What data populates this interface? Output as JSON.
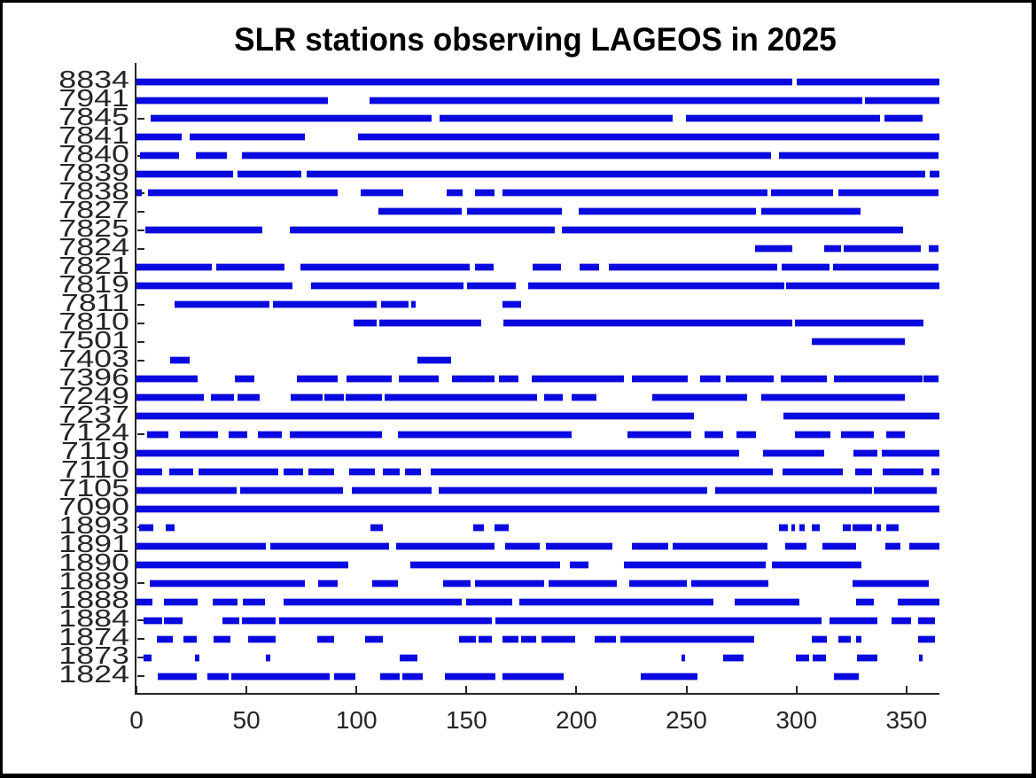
{
  "title": "SLR stations observing LAGEOS in 2025",
  "colors": {
    "bar": "#0a0ae0",
    "axis": "#262626",
    "tick_label": "#262626",
    "title": "#000000",
    "frame": "#000000",
    "background": "#ffffff"
  },
  "chart_data": {
    "type": "bar",
    "orientation": "horizontal-segments",
    "title": "SLR stations observing LAGEOS in 2025",
    "xlabel": "",
    "ylabel": "",
    "xlim": [
      0,
      365
    ],
    "xticks": [
      0,
      50,
      100,
      150,
      200,
      250,
      300,
      350
    ],
    "grid": false,
    "legend": false,
    "stations": [
      {
        "id": "8834",
        "segments": [
          [
            0,
            298
          ],
          [
            300,
            365
          ]
        ]
      },
      {
        "id": "7941",
        "segments": [
          [
            0,
            87
          ],
          [
            106,
            330
          ],
          [
            331,
            365
          ]
        ]
      },
      {
        "id": "7845",
        "segments": [
          [
            6.4,
            134
          ],
          [
            137.7,
            243.8
          ],
          [
            249.6,
            338
          ],
          [
            340,
            357.5
          ]
        ]
      },
      {
        "id": "7841",
        "segments": [
          [
            0,
            20.4
          ],
          [
            24,
            76.4
          ],
          [
            100.8,
            365
          ]
        ]
      },
      {
        "id": "7840",
        "segments": [
          [
            1.6,
            19.4
          ],
          [
            26.8,
            41.1
          ],
          [
            47.9,
            288.4
          ],
          [
            292,
            364.5
          ]
        ]
      },
      {
        "id": "7839",
        "segments": [
          [
            0,
            43.8
          ],
          [
            45.8,
            75.1
          ],
          [
            77.4,
            358.5
          ],
          [
            360.5,
            365
          ]
        ]
      },
      {
        "id": "7838",
        "segments": [
          [
            0,
            2.5
          ],
          [
            5.2,
            91.4
          ],
          [
            101.8,
            121.2
          ],
          [
            141,
            148.4
          ],
          [
            153.7,
            162.7
          ],
          [
            166.5,
            286.8
          ],
          [
            288.4,
            316.6
          ],
          [
            319,
            364.8
          ]
        ]
      },
      {
        "id": "7827",
        "segments": [
          [
            109.9,
            147.7
          ],
          [
            150.1,
            193.3
          ],
          [
            201,
            281.7
          ],
          [
            284.1,
            329.3
          ]
        ]
      },
      {
        "id": "7825",
        "segments": [
          [
            4,
            57.2
          ],
          [
            69.7,
            190.3
          ],
          [
            193.3,
            348.7
          ]
        ]
      },
      {
        "id": "7824",
        "segments": [
          [
            281,
            298.2
          ],
          [
            312.8,
            320.2
          ],
          [
            321.5,
            356.4
          ],
          [
            360.2,
            364.6
          ]
        ]
      },
      {
        "id": "7821",
        "segments": [
          [
            0,
            34.2
          ],
          [
            36.2,
            67.3
          ],
          [
            74.7,
            151.7
          ],
          [
            153.7,
            162.2
          ],
          [
            179.9,
            192.9
          ],
          [
            201.3,
            210.4
          ],
          [
            214.7,
            291.4
          ],
          [
            293.1,
            315.2
          ],
          [
            316.5,
            364.6
          ]
        ]
      },
      {
        "id": "7819",
        "segments": [
          [
            0,
            71
          ],
          [
            79.3,
            148.8
          ],
          [
            150.4,
            172.5
          ],
          [
            177.9,
            294.5
          ],
          [
            295.1,
            365
          ]
        ]
      },
      {
        "id": "7811",
        "segments": [
          [
            17.4,
            60.3
          ],
          [
            61.9,
            109.1
          ],
          [
            111.2,
            123.8
          ],
          [
            124.8,
            127
          ],
          [
            166.2,
            174.8
          ]
        ]
      },
      {
        "id": "7810",
        "segments": [
          [
            98.8,
            109.1
          ],
          [
            110.2,
            156.8
          ],
          [
            166.9,
            298.1
          ],
          [
            299.2,
            357.9
          ]
        ]
      },
      {
        "id": "7501",
        "segments": [
          [
            307,
            349.2
          ]
        ]
      },
      {
        "id": "7403",
        "segments": [
          [
            15.4,
            24.4
          ],
          [
            127.6,
            143
          ]
        ]
      },
      {
        "id": "7396",
        "segments": [
          [
            0,
            27.7
          ],
          [
            44.8,
            53.6
          ],
          [
            72.9,
            91.4
          ],
          [
            95.4,
            116.2
          ],
          [
            119.3,
            137.4
          ],
          [
            143.4,
            162.7
          ],
          [
            164.7,
            173.8
          ],
          [
            179.6,
            221.4
          ],
          [
            225.2,
            250.6
          ],
          [
            256.3,
            265.4
          ],
          [
            267.9,
            289.5
          ],
          [
            292.9,
            313.9
          ],
          [
            316.9,
            357.5
          ],
          [
            357.9,
            364.6
          ]
        ]
      },
      {
        "id": "7249",
        "segments": [
          [
            0,
            30.5
          ],
          [
            34,
            44.5
          ],
          [
            45.8,
            56.2
          ],
          [
            70,
            84.7
          ],
          [
            85.4,
            94.4
          ],
          [
            95.2,
            111.8
          ],
          [
            112.6,
            181.9
          ],
          [
            185.2,
            193.9
          ],
          [
            197.6,
            209.1
          ],
          [
            234.5,
            277.4
          ],
          [
            284.1,
            349.4
          ]
        ]
      },
      {
        "id": "7237",
        "segments": [
          [
            0,
            253.3
          ],
          [
            294.2,
            365
          ]
        ]
      },
      {
        "id": "7124",
        "segments": [
          [
            4.9,
            14.4
          ],
          [
            19.7,
            37.1
          ],
          [
            41.8,
            50.5
          ],
          [
            55.2,
            65.9
          ],
          [
            69.6,
            111.8
          ],
          [
            118.9,
            198
          ],
          [
            223,
            252.2
          ],
          [
            258.3,
            266.7
          ],
          [
            272.6,
            281.5
          ],
          [
            299.2,
            315.5
          ],
          [
            320.2,
            335.1
          ],
          [
            340.7,
            349.4
          ]
        ]
      },
      {
        "id": "7119",
        "segments": [
          [
            0,
            274.1
          ],
          [
            285,
            312.8
          ],
          [
            326,
            336.7
          ],
          [
            338.7,
            365
          ]
        ]
      },
      {
        "id": "7110",
        "segments": [
          [
            0,
            11.7
          ],
          [
            14.7,
            25.7
          ],
          [
            28.1,
            64.6
          ],
          [
            67,
            75.6
          ],
          [
            78,
            89.8
          ],
          [
            96.5,
            108.2
          ],
          [
            111.8,
            119.8
          ],
          [
            122.2,
            129.2
          ],
          [
            133.6,
            289.1
          ],
          [
            293.8,
            321.2
          ],
          [
            326.7,
            334.3
          ],
          [
            339.1,
            357.9
          ],
          [
            361.2,
            365
          ]
        ]
      },
      {
        "id": "7105",
        "segments": [
          [
            0,
            45.4
          ],
          [
            47.2,
            93.8
          ],
          [
            97.8,
            134
          ],
          [
            137.2,
            259.6
          ],
          [
            263.2,
            334.3
          ],
          [
            335.1,
            363.8
          ]
        ]
      },
      {
        "id": "7090",
        "segments": [
          [
            0,
            365
          ]
        ]
      },
      {
        "id": "1893",
        "segments": [
          [
            1.3,
            7.6
          ],
          [
            13.4,
            17.4
          ],
          [
            106.2,
            112.2
          ],
          [
            153.1,
            158.1
          ],
          [
            162.7,
            169.4
          ],
          [
            292.2,
            296.2
          ],
          [
            297.6,
            299.4
          ],
          [
            301.2,
            303.8
          ],
          [
            306.9,
            310.5
          ],
          [
            321.2,
            324.9
          ],
          [
            325.7,
            334.3
          ],
          [
            336.5,
            338.3
          ],
          [
            340.7,
            346.4
          ]
        ]
      },
      {
        "id": "1891",
        "segments": [
          [
            0,
            58.6
          ],
          [
            60.8,
            114.9
          ],
          [
            117.9,
            162.7
          ],
          [
            167.6,
            183.2
          ],
          [
            186.3,
            216.3
          ],
          [
            225,
            241.7
          ],
          [
            243.7,
            286.8
          ],
          [
            294.8,
            304.7
          ],
          [
            311.8,
            327.1
          ],
          [
            340.5,
            347.4
          ],
          [
            351.2,
            365
          ]
        ]
      },
      {
        "id": "1890",
        "segments": [
          [
            0,
            96.1
          ],
          [
            124.6,
            192.6
          ],
          [
            197,
            205.6
          ],
          [
            221.7,
            286
          ],
          [
            288.7,
            329.7
          ]
        ]
      },
      {
        "id": "1889",
        "segments": [
          [
            5.9,
            76.4
          ],
          [
            82.7,
            91.4
          ],
          [
            107.2,
            118.9
          ],
          [
            139.4,
            152
          ],
          [
            153.7,
            185.5
          ],
          [
            187.2,
            218.5
          ],
          [
            223.8,
            250.2
          ],
          [
            252.2,
            287.3
          ],
          [
            325.7,
            360.2
          ]
        ]
      },
      {
        "id": "1888",
        "segments": [
          [
            0,
            7.2
          ],
          [
            12.6,
            27.7
          ],
          [
            34.5,
            46.1
          ],
          [
            48.3,
            58.6
          ],
          [
            67,
            148
          ],
          [
            149.7,
            170.8
          ],
          [
            174.2,
            262.3
          ],
          [
            272.1,
            301.2
          ],
          [
            327.1,
            335.1
          ],
          [
            346.1,
            365
          ]
        ]
      },
      {
        "id": "1884",
        "segments": [
          [
            3.2,
            11.7
          ],
          [
            12.3,
            21
          ],
          [
            39.1,
            46.9
          ],
          [
            47.9,
            63.3
          ],
          [
            64.9,
            161.4
          ],
          [
            163.1,
            311.3
          ],
          [
            315,
            336.9
          ],
          [
            343.1,
            352.1
          ],
          [
            355.2,
            362.8
          ]
        ]
      },
      {
        "id": "1874",
        "segments": [
          [
            9.4,
            16.4
          ],
          [
            21.4,
            27.3
          ],
          [
            34.9,
            42.9
          ],
          [
            50.9,
            63.3
          ],
          [
            82,
            89.8
          ],
          [
            104.1,
            112.2
          ],
          [
            146.6,
            154.4
          ],
          [
            155.5,
            161.4
          ],
          [
            166.2,
            173.8
          ],
          [
            174.8,
            181.9
          ],
          [
            183.9,
            199.3
          ],
          [
            208.3,
            218.1
          ],
          [
            220.1,
            281
          ],
          [
            306.9,
            313.9
          ],
          [
            319,
            324.9
          ],
          [
            327.1,
            329.7
          ],
          [
            355.2,
            362.8
          ]
        ]
      },
      {
        "id": "1873",
        "segments": [
          [
            3.2,
            6.7
          ],
          [
            26.4,
            28.7
          ],
          [
            58.6,
            60.8
          ],
          [
            119.8,
            127.6
          ],
          [
            247.6,
            249.3
          ],
          [
            266.7,
            276.1
          ],
          [
            299.8,
            305.6
          ],
          [
            307.5,
            313.6
          ],
          [
            327.6,
            336.9
          ],
          [
            355.7,
            357.5
          ]
        ]
      },
      {
        "id": "1824",
        "segments": [
          [
            9.7,
            27.3
          ],
          [
            32.2,
            41.8
          ],
          [
            42.9,
            87.7
          ],
          [
            89.8,
            99.7
          ],
          [
            110.9,
            119.5
          ],
          [
            120.9,
            130
          ],
          [
            140.3,
            163.1
          ],
          [
            166.5,
            194.3
          ],
          [
            229.2,
            254.9
          ],
          [
            317,
            328.4
          ]
        ]
      }
    ]
  }
}
